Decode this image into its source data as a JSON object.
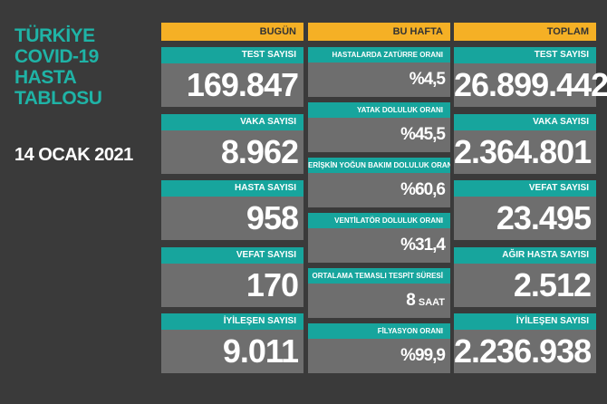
{
  "header": {
    "title_lines": [
      "TÜRKİYE",
      "COVID-19",
      "HASTA",
      "TABLOSU"
    ],
    "date": "14 OCAK 2021"
  },
  "columns": [
    {
      "title": "BUGÜN",
      "items": [
        {
          "label": "TEST SAYISI",
          "value": "169.847"
        },
        {
          "label": "VAKA SAYISI",
          "value": "8.962"
        },
        {
          "label": "HASTA SAYISI",
          "value": "958"
        },
        {
          "label": "VEFAT SAYISI",
          "value": "170"
        },
        {
          "label": "İYİLEŞEN SAYISI",
          "value": "9.011"
        }
      ]
    },
    {
      "title": "BU HAFTA",
      "items": [
        {
          "label": "HASTALARDA ZATÜRRE ORANI",
          "value": "%4,5"
        },
        {
          "label": "YATAK DOLULUK ORANI",
          "value": "%45,5"
        },
        {
          "label": "ERİŞKİN YOĞUN BAKIM DOLULUK ORANI",
          "value": "%60,6"
        },
        {
          "label": "VENTİLATÖR DOLULUK ORANI",
          "value": "%31,4"
        },
        {
          "label": "ORTALAMA TEMASLI TESPİT SÜRESİ",
          "value": "8",
          "unit": "SAAT"
        },
        {
          "label": "FİLYASYON ORANI",
          "value": "%99,9"
        }
      ]
    },
    {
      "title": "TOPLAM",
      "items": [
        {
          "label": "TEST SAYISI",
          "value": "26.899.442"
        },
        {
          "label": "VAKA SAYISI",
          "value": "2.364.801"
        },
        {
          "label": "VEFAT SAYISI",
          "value": "23.495"
        },
        {
          "label": "AĞIR HASTA SAYISI",
          "value": "2.512"
        },
        {
          "label": "İYİLEŞEN SAYISI",
          "value": "2.236.938"
        }
      ]
    }
  ]
}
